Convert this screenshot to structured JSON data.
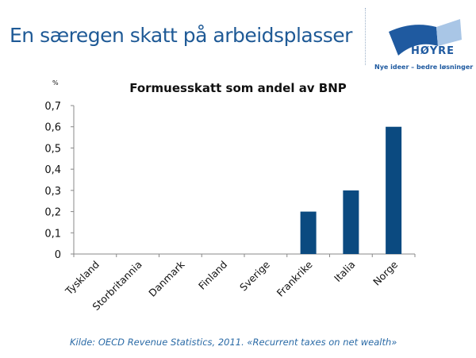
{
  "header": {
    "title": "En særegen skatt på arbeidsplasser"
  },
  "logo": {
    "name": "HØYRE",
    "slogan": "Nye ideer – bedre løsninger"
  },
  "source": "Kilde: OECD Revenue Statistics, 2011. «Recurrent taxes on net wealth»",
  "colors": {
    "bar": "#0b4a80",
    "title": "#1f5a96"
  },
  "chart_data": {
    "type": "bar",
    "title": "Formuesskatt som andel av BNP",
    "ylabel": "%",
    "xlabel": "",
    "categories": [
      "Tyskland",
      "Storbritannia",
      "Danmark",
      "Finland",
      "Sverige",
      "Frankrike",
      "Italia",
      "Norge"
    ],
    "values": [
      0,
      0,
      0,
      0,
      0,
      0.2,
      0.3,
      0.6
    ],
    "ylim": [
      0,
      0.7
    ],
    "yticks": [
      "0",
      "0,1",
      "0,2",
      "0,3",
      "0,4",
      "0,5",
      "0,6",
      "0,7"
    ],
    "grid": false,
    "legend": "none"
  }
}
